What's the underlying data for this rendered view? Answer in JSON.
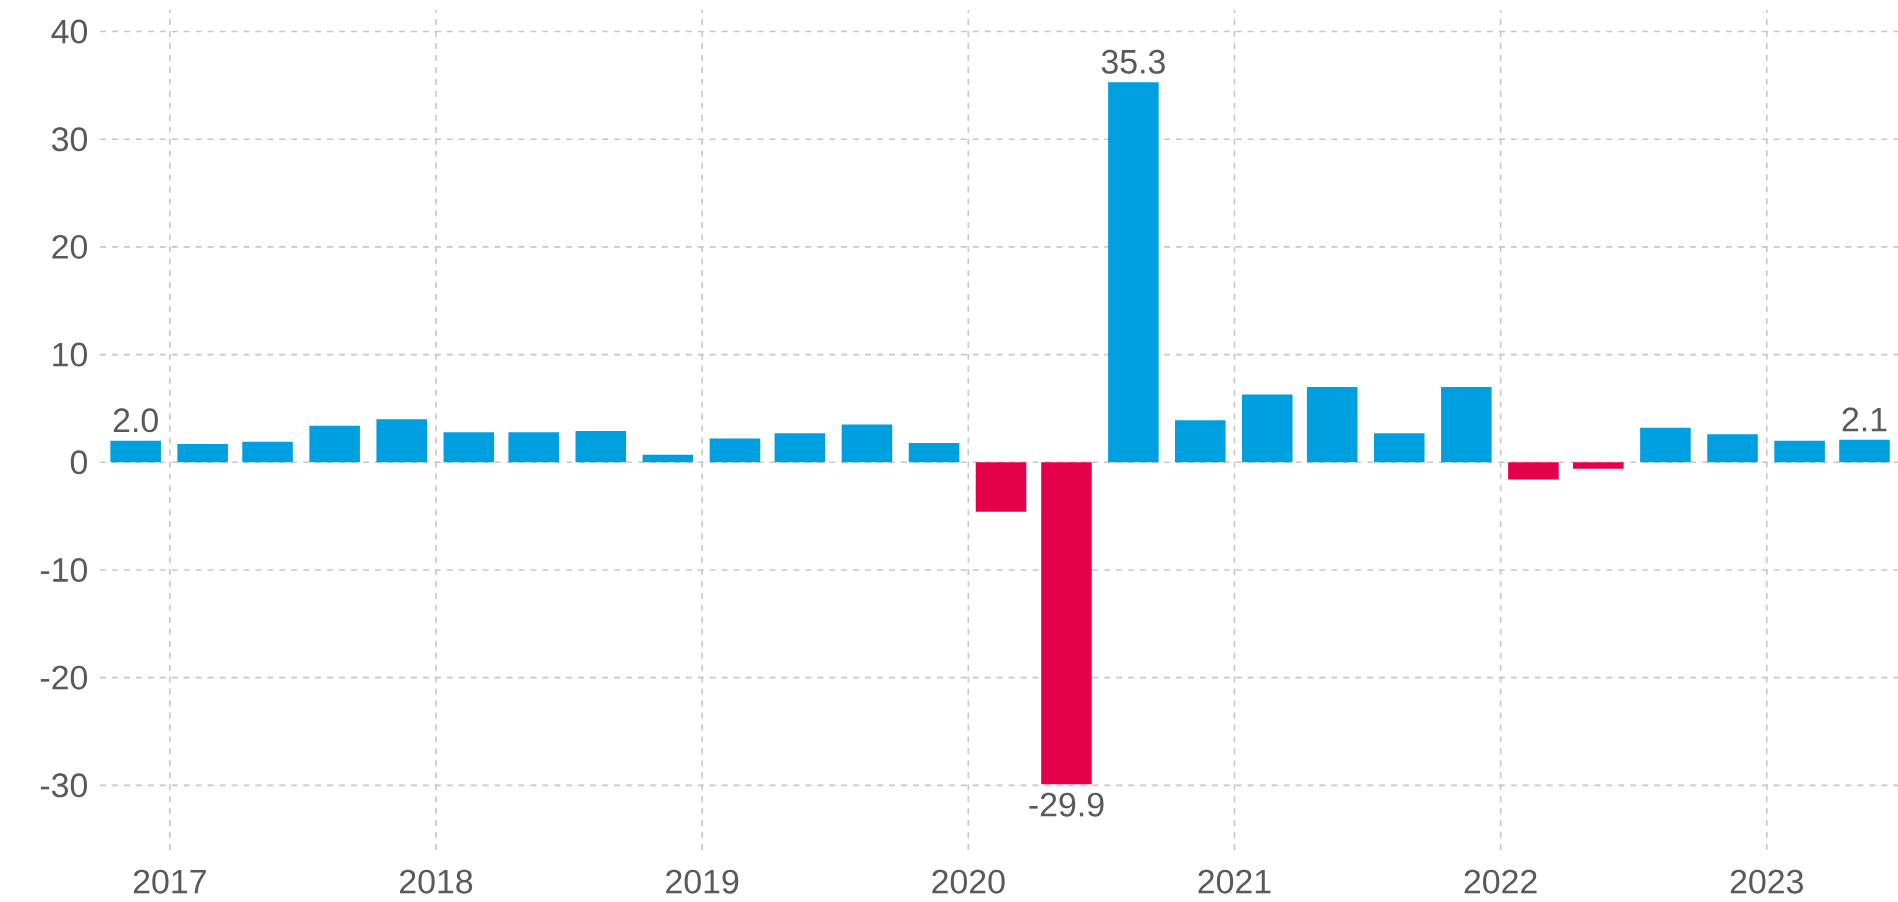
{
  "chart_data": {
    "type": "bar",
    "x": [
      "2016-11-15",
      "2017-02-15",
      "2017-05-15",
      "2017-08-15",
      "2017-11-15",
      "2018-02-15",
      "2018-05-15",
      "2018-08-15",
      "2018-11-15",
      "2019-02-15",
      "2019-05-15",
      "2019-08-15",
      "2019-11-15",
      "2020-02-15",
      "2020-05-15",
      "2020-08-15",
      "2020-11-15",
      "2021-02-15",
      "2021-05-15",
      "2021-08-15",
      "2021-11-15",
      "2022-02-15",
      "2022-05-15",
      "2022-08-15",
      "2022-11-15",
      "2023-02-15",
      "2023-05-15"
    ],
    "values": [
      2.0,
      1.7,
      1.9,
      3.4,
      4.0,
      2.8,
      2.8,
      2.9,
      0.7,
      2.2,
      2.7,
      3.5,
      1.8,
      -4.6,
      -29.9,
      35.3,
      3.9,
      6.3,
      7.0,
      2.7,
      7.0,
      -1.6,
      -0.6,
      3.2,
      2.6,
      2.0,
      2.1
    ],
    "colors": [
      "#009fdf",
      "#009fdf",
      "#009fdf",
      "#009fdf",
      "#009fdf",
      "#009fdf",
      "#009fdf",
      "#009fdf",
      "#009fdf",
      "#009fdf",
      "#009fdf",
      "#009fdf",
      "#009fdf",
      "#e4004b",
      "#e4004b",
      "#009fdf",
      "#009fdf",
      "#009fdf",
      "#009fdf",
      "#009fdf",
      "#009fdf",
      "#e4004b",
      "#e4004b",
      "#009fdf",
      "#009fdf",
      "#009fdf",
      "#009fdf"
    ],
    "value_labels": [
      "2.0",
      null,
      null,
      null,
      null,
      null,
      null,
      null,
      null,
      null,
      null,
      null,
      null,
      null,
      "-29.9",
      "35.3",
      null,
      null,
      null,
      null,
      null,
      null,
      null,
      null,
      null,
      null,
      "2.1"
    ],
    "xlim": [
      "2016-09-27",
      "2023-06-30"
    ],
    "ylim": [
      -36,
      42
    ],
    "xticks": [
      "2017",
      "2018",
      "2019",
      "2020",
      "2021",
      "2022",
      "2023"
    ],
    "yticks": [
      -30,
      -20,
      -10,
      0,
      10,
      20,
      30,
      40
    ],
    "grid": true
  }
}
